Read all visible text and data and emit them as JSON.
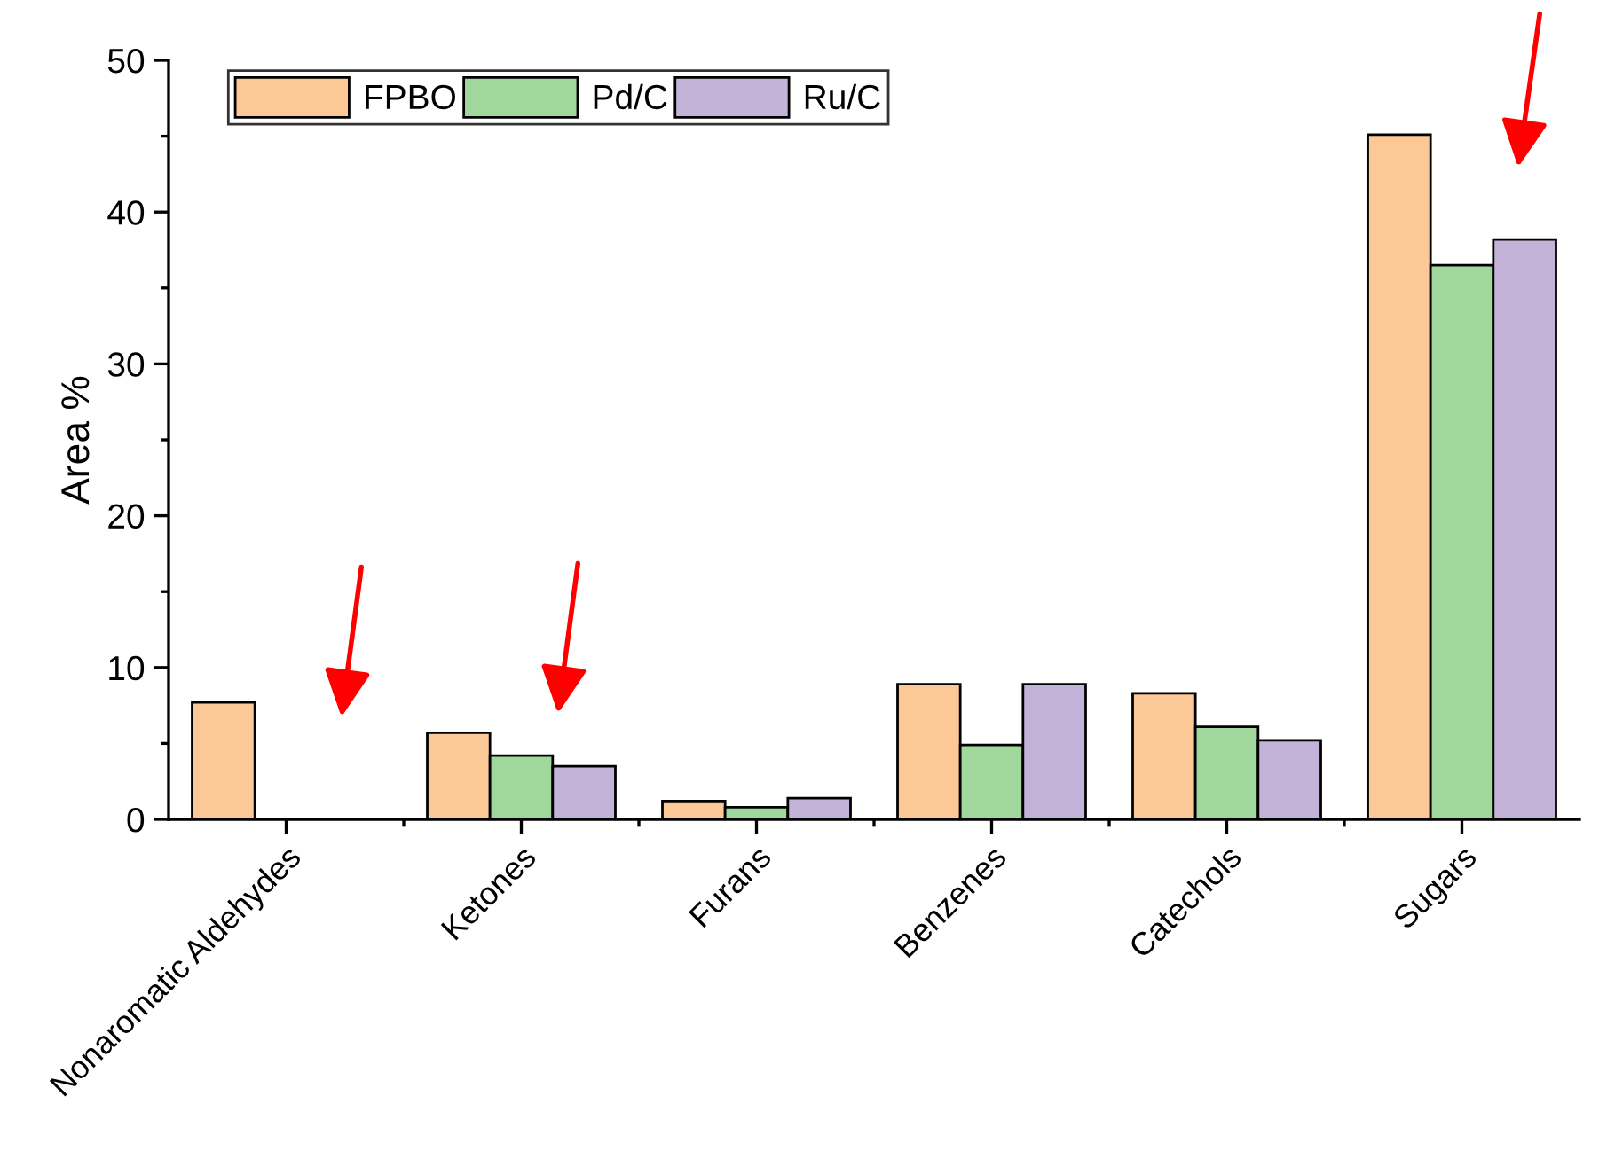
{
  "chart_data": {
    "type": "bar",
    "ylabel": "Area %",
    "categories": [
      "Nonaromatic Aldehydes",
      "Ketones",
      "Furans",
      "Benzenes",
      "Catechols",
      "Sugars"
    ],
    "series": [
      {
        "name": "FPBO",
        "color": "#fbc896",
        "values": [
          7.7,
          5.7,
          1.2,
          8.9,
          8.3,
          45.1
        ]
      },
      {
        "name": "Pd/C",
        "color": "#a0d89c",
        "values": [
          null,
          4.2,
          0.8,
          4.9,
          6.1,
          36.5
        ]
      },
      {
        "name": "Ru/C",
        "color": "#c3b3d8",
        "values": [
          null,
          3.5,
          1.4,
          8.9,
          5.2,
          38.2
        ]
      }
    ],
    "ylim": [
      0,
      50
    ],
    "yticks": [
      0,
      10,
      20,
      30,
      40,
      50
    ],
    "legend": "top left",
    "grid": false
  }
}
